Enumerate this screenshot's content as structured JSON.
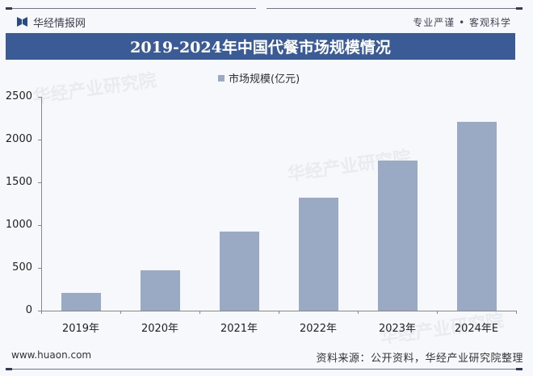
{
  "header": {
    "brand_name": "华经情报网",
    "slogan": "专业严谨 • 客观科学",
    "title": "2019-2024年中国代餐市场规模情况"
  },
  "footer": {
    "website": "www.huaon.com",
    "source": "资料来源：公开资料，华经产业研究院整理"
  },
  "watermarks": [
    "华经产业研究院",
    "华经产业研究院",
    "华经产业研究院"
  ],
  "colors": {
    "title_bar": "#3b5b96",
    "bar": "#9aaac4",
    "logo": "#2a4a86"
  },
  "chart_data": {
    "type": "bar",
    "title": "2019-2024年中国代餐市场规模情况",
    "categories": [
      "2019年",
      "2020年",
      "2021年",
      "2022年",
      "2023年",
      "2024年E"
    ],
    "series": [
      {
        "name": "市场规模(亿元)",
        "values": [
          205,
          472,
          925,
          1321,
          1755,
          2208
        ]
      }
    ],
    "xlabel": "",
    "ylabel": "",
    "ylim": [
      0,
      2500
    ],
    "yticks": [
      0,
      500,
      1000,
      1500,
      2000,
      2500
    ],
    "grid": false,
    "legend_position": "top-center"
  }
}
